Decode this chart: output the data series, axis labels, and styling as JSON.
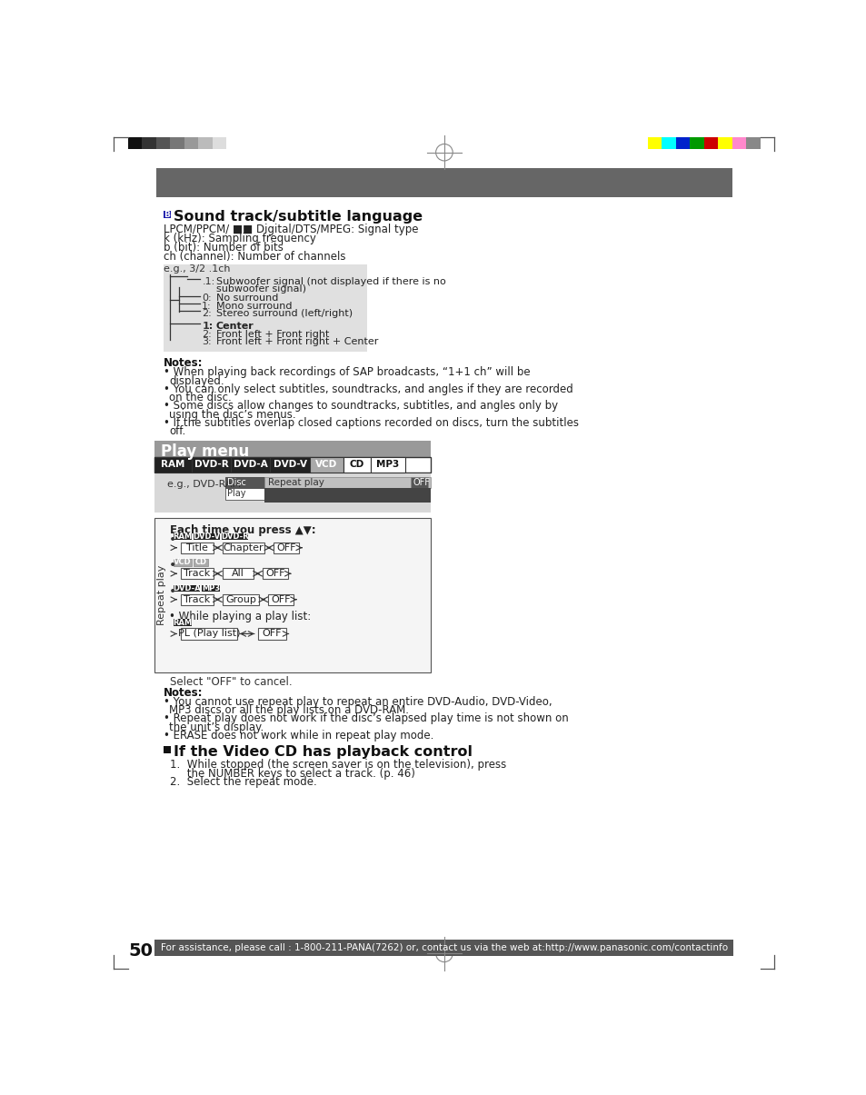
{
  "page_bg": "#ffffff",
  "header_bar_color": "#666666",
  "footer_bar_color": "#555555",
  "page_number": "50",
  "footer_text": "For assistance, please call : 1-800-211-PANA(7262) or, contact us via the web at:http://www.panasonic.com/contactinfo",
  "section1_title": "Sound track/subtitle language",
  "section1_body": [
    "LPCM/PPCM/ ■■ Digital/DTS/MPEG: Signal type",
    "k (kHz): Sampling frequency",
    "b (bit): Number of bits",
    "ch (channel): Number of channels"
  ],
  "notes_title": "Notes:",
  "notes": [
    [
      "When playing back recordings of SAP broadcasts, “1+1 ch” will be",
      "displayed."
    ],
    [
      "You can only select subtitles, soundtracks, and angles if they are recorded",
      "on the disc."
    ],
    [
      "Some discs allow changes to soundtracks, subtitles, and angles only by",
      "using the disc’s menus."
    ],
    [
      "If the subtitles overlap closed captions recorded on discs, turn the subtitles",
      "off."
    ]
  ],
  "section2_title": "Play menu",
  "section2_bg": "#999999",
  "tab_labels": [
    "RAM",
    "DVD-R",
    "DVD-A",
    "DVD-V",
    "VCD",
    "CD",
    "MP3"
  ],
  "tab_dark": [
    "RAM",
    "DVD-R",
    "DVD-A",
    "DVD-V"
  ],
  "tab_mid": [
    "VCD"
  ],
  "tab_light": [
    "CD",
    "MP3"
  ],
  "notes2_title": "Notes:",
  "notes2": [
    [
      "You cannot use repeat play to repeat an entire DVD-Audio, DVD-Video,",
      "MP3 discs or all the play lists on a DVD-RAM."
    ],
    [
      "Repeat play does not work if the disc’s elapsed play time is not shown on",
      "the unit’s display."
    ],
    [
      "ERASE does not work while in repeat play mode."
    ]
  ],
  "section3_title": "If the Video CD has playback control",
  "section3_steps": [
    [
      "1.  While stopped (the screen saver is on the television), press",
      "     the NUMBER keys to select a track. (p. 46)"
    ],
    [
      "2.  Select the repeat mode."
    ]
  ],
  "color_bar_left": [
    "#111111",
    "#333333",
    "#555555",
    "#777777",
    "#999999",
    "#bbbbbb",
    "#dddddd",
    "#ffffff"
  ],
  "color_bar_right": [
    "#ffff00",
    "#00ffff",
    "#0022cc",
    "#009900",
    "#cc0000",
    "#ffff00",
    "#ff88cc",
    "#888888"
  ],
  "crosshair_color": "#888888",
  "diagram_bg": "#e0e0e0",
  "repeat_box_bg": "#f5f5f5",
  "player_area_bg": "#c8c8c8"
}
